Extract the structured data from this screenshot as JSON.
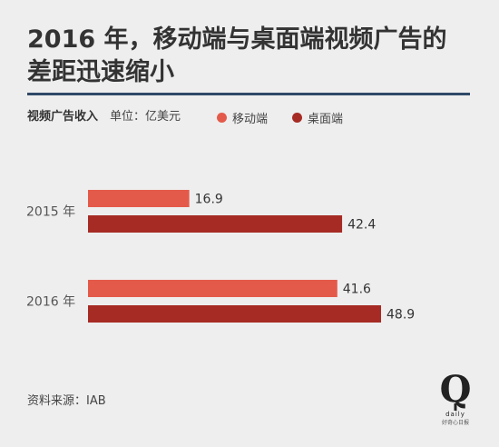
{
  "title_lines": [
    "2016 年，移动端与桌面端视频广告的",
    "差距迅速缩小"
  ],
  "metric_label": "视频广告收入",
  "unit_label": "单位：亿美元",
  "source": "资料来源：IAB",
  "logo_text": "daily 好奇心日报",
  "colors": {
    "mobile": "#e45a4a",
    "desktop": "#a62b24",
    "rule": "#2f4a68"
  },
  "chart_data": {
    "type": "bar",
    "orientation": "horizontal",
    "categories": [
      "2015 年",
      "2016 年"
    ],
    "series": [
      {
        "name": "移动端",
        "values": [
          16.9,
          41.6
        ]
      },
      {
        "name": "桌面端",
        "values": [
          42.4,
          48.9
        ]
      }
    ],
    "xlim": [
      0,
      48.9
    ],
    "grid": false,
    "legend": "top-right",
    "data_labels": true
  }
}
